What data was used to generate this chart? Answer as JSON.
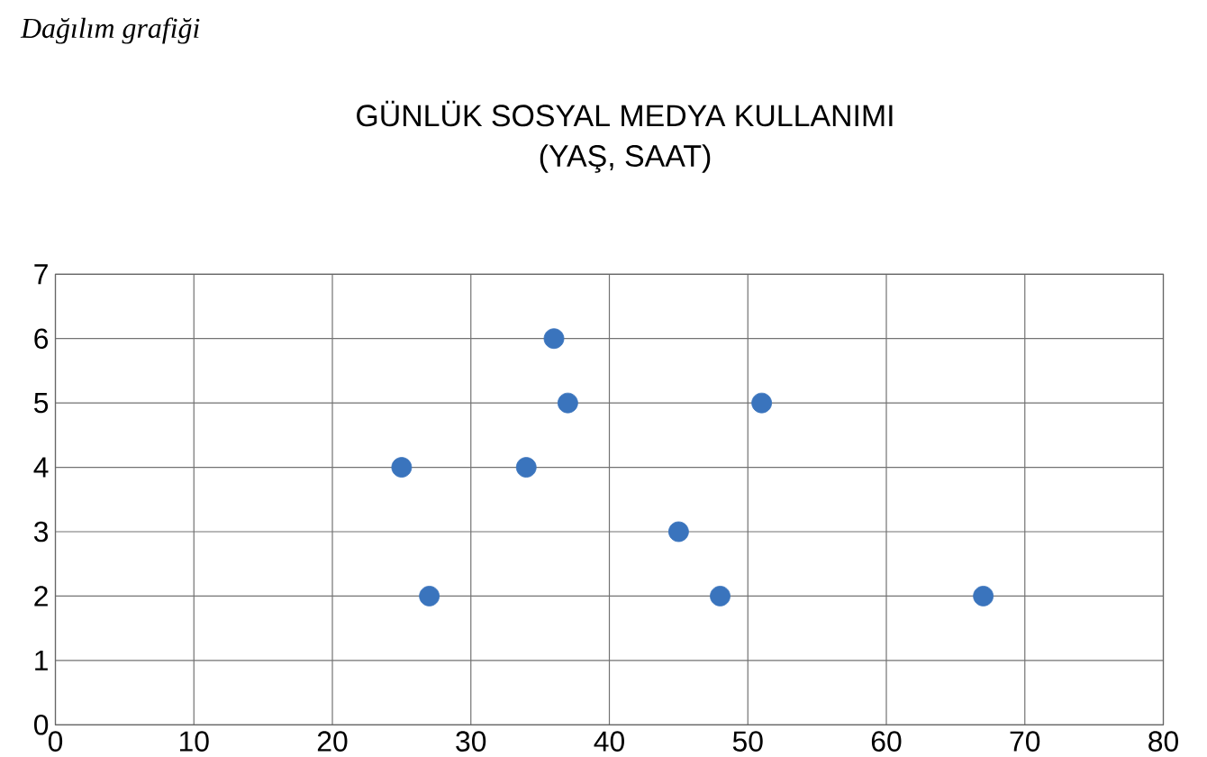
{
  "chart_data": {
    "type": "scatter",
    "title": "GÜNLÜK SOSYAL MEDYA KULLANIMI",
    "subtitle": "(YAŞ, SAAT)",
    "annotations": [
      "Dağılım grafiği"
    ],
    "x": [
      25,
      27,
      34,
      36,
      37,
      45,
      48,
      51,
      67
    ],
    "values": [
      4,
      2,
      4,
      6,
      5,
      3,
      2,
      5,
      2
    ],
    "color": "#3a74bd",
    "marker": "circle",
    "grid": true,
    "xlim": [
      0,
      80
    ],
    "xticks": [
      0,
      10,
      20,
      30,
      40,
      50,
      60,
      70,
      80
    ],
    "ylim": [
      0,
      7
    ],
    "yticks": [
      0,
      1,
      2,
      3,
      4,
      5,
      6,
      7
    ]
  }
}
